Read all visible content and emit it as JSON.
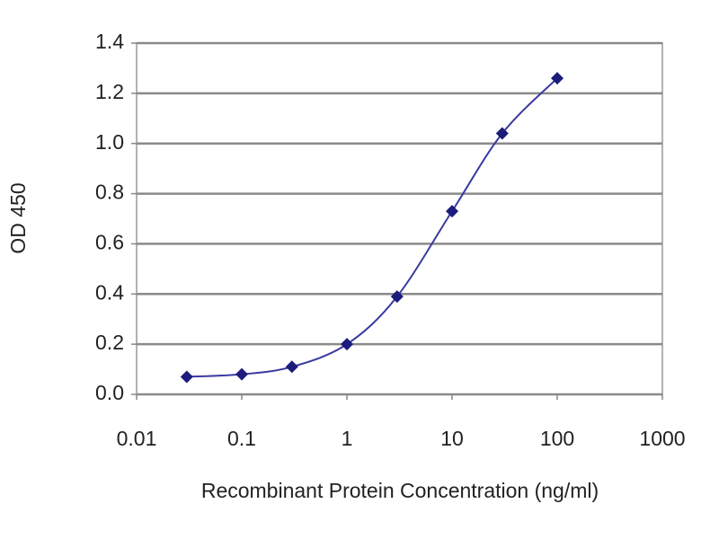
{
  "chart_data": {
    "type": "line",
    "log_x": true,
    "grid": true,
    "color": "#1c1c7c",
    "x_label": "Recombinant Protein Concentration (ng/ml)",
    "y_label": "OD 450",
    "x": [
      0.03,
      0.1,
      0.3,
      1,
      3,
      10,
      30,
      100
    ],
    "values": [
      0.07,
      0.08,
      0.11,
      0.2,
      0.39,
      0.73,
      1.04,
      1.26
    ],
    "xlim": [
      0.01,
      1000
    ],
    "xticks": [
      0.01,
      0.1,
      1,
      10,
      100,
      1000
    ],
    "ylim": [
      0,
      1.4
    ],
    "yticks": [
      {
        "value": 0,
        "label": "0.0"
      },
      0.2,
      0.4,
      0.6,
      0.8,
      {
        "value": 1,
        "label": "1.0"
      },
      1.2,
      1.4
    ]
  }
}
